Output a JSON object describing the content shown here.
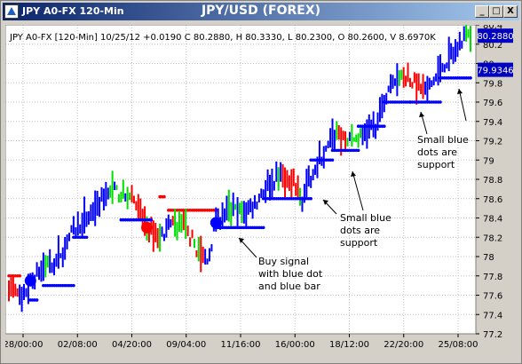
{
  "window": {
    "title": "JPY A0-FX 120-Min",
    "chart_title": "JPY/USD (FOREX)",
    "buttons": {
      "minimize": "_",
      "maximize": "□",
      "close": "X"
    }
  },
  "header_info": "JPY A0-FX [120-Min] 10/25/12 +0.0190 C 80.2880, H 80.3330, L 80.2300, O 80.2600, V 8.6970K",
  "price_badges": {
    "last": "80.2880",
    "support": "79.9346"
  },
  "annotations": {
    "buy_signal": [
      "Buy signal",
      "with blue dot",
      "and blue bar"
    ],
    "support_1": [
      "Small blue",
      "dots are",
      "support"
    ],
    "support_2": [
      "Small blue",
      "dots are",
      "support"
    ]
  },
  "colors": {
    "up": "#0000ff",
    "mid": "#00e000",
    "down": "#ff0000",
    "resistance": "#ff0000",
    "support": "#0000ff",
    "grid": "#c0c0c0",
    "background": "#ffffff"
  },
  "chart_data": {
    "type": "bar",
    "subtype": "ohlc-price-bars",
    "ylim": [
      77.2,
      80.4
    ],
    "yticks": [
      77.2,
      77.4,
      77.6,
      77.8,
      78,
      78.2,
      78.4,
      78.6,
      78.8,
      79,
      79.2,
      79.4,
      79.6,
      79.8,
      80,
      80.2,
      80.4
    ],
    "xticks": [
      "28/00:00",
      "02/08:00",
      "04/20:00",
      "09/04:00",
      "11/16:00",
      "16/00:00",
      "18/12:00",
      "22/20:00",
      "25/08:00"
    ],
    "grid": true,
    "trend": [
      [
        0,
        77.7
      ],
      [
        6,
        77.55
      ],
      [
        10,
        77.75
      ],
      [
        16,
        77.9
      ],
      [
        22,
        77.95
      ],
      [
        28,
        78.2
      ],
      [
        34,
        78.35
      ],
      [
        40,
        78.5
      ],
      [
        46,
        78.7
      ],
      [
        52,
        78.65
      ],
      [
        58,
        78.6
      ],
      [
        64,
        78.3
      ],
      [
        70,
        78.2
      ],
      [
        76,
        78.35
      ],
      [
        82,
        78.3
      ],
      [
        88,
        78.05
      ],
      [
        92,
        77.95
      ],
      [
        96,
        78.35
      ],
      [
        102,
        78.5
      ],
      [
        108,
        78.45
      ],
      [
        114,
        78.55
      ],
      [
        120,
        78.75
      ],
      [
        126,
        78.85
      ],
      [
        132,
        78.75
      ],
      [
        136,
        78.6
      ],
      [
        140,
        78.85
      ],
      [
        146,
        79.05
      ],
      [
        152,
        79.3
      ],
      [
        158,
        79.2
      ],
      [
        164,
        79.25
      ],
      [
        170,
        79.35
      ],
      [
        176,
        79.75
      ],
      [
        182,
        79.9
      ],
      [
        188,
        79.8
      ],
      [
        194,
        79.7
      ],
      [
        200,
        79.95
      ],
      [
        206,
        80.1
      ],
      [
        212,
        80.3
      ]
    ],
    "resistance_dots": [
      {
        "from": 0,
        "to": 5,
        "y": 77.8
      },
      {
        "from": 70,
        "to": 72,
        "y": 78.62
      },
      {
        "from": 74,
        "to": 96,
        "y": 78.48
      }
    ],
    "support_dots": [
      {
        "from": 10,
        "to": 13,
        "y": 77.55
      },
      {
        "from": 16,
        "to": 30,
        "y": 77.7
      },
      {
        "from": 30,
        "to": 36,
        "y": 78.2
      },
      {
        "from": 52,
        "to": 66,
        "y": 78.38
      },
      {
        "from": 96,
        "to": 118,
        "y": 78.3
      },
      {
        "from": 118,
        "to": 140,
        "y": 78.6
      },
      {
        "from": 140,
        "to": 150,
        "y": 79.0
      },
      {
        "from": 150,
        "to": 162,
        "y": 79.1
      },
      {
        "from": 162,
        "to": 174,
        "y": 79.35
      },
      {
        "from": 174,
        "to": 186,
        "y": 79.6
      },
      {
        "from": 186,
        "to": 200,
        "y": 79.6
      },
      {
        "from": 200,
        "to": 214,
        "y": 79.85
      }
    ],
    "signals": [
      {
        "type": "buy",
        "x": 10,
        "y": 77.75
      },
      {
        "type": "sell",
        "x": 64,
        "y": 78.3
      },
      {
        "type": "buy",
        "x": 96,
        "y": 78.35
      }
    ],
    "last_price": 80.288,
    "support_level": 79.9346
  }
}
